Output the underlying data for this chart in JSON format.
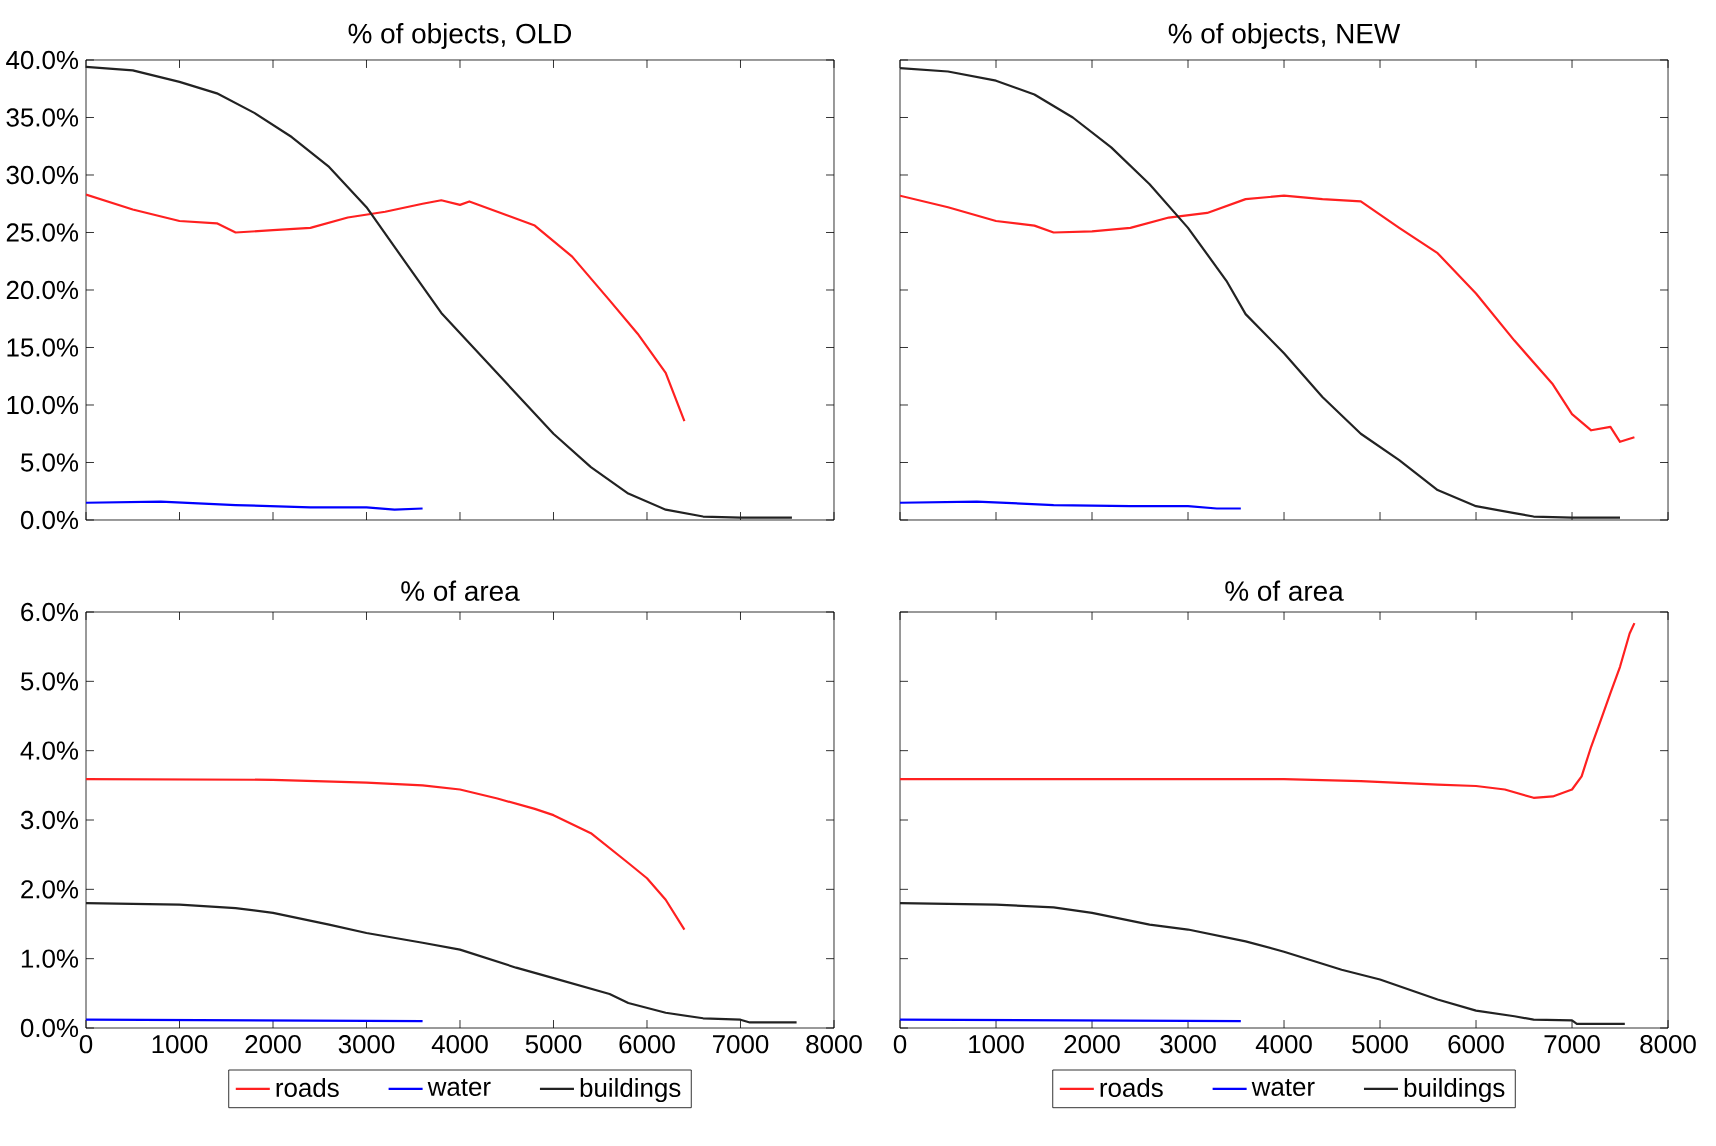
{
  "chart_data": [
    {
      "type": "line",
      "title": "% of objects, OLD",
      "xlim": [
        0,
        8000
      ],
      "xticks": [
        {
          "value": 0,
          "label": null
        },
        {
          "value": 1000,
          "label": null
        },
        {
          "value": 2000,
          "label": null
        },
        {
          "value": 3000,
          "label": null
        },
        {
          "value": 4000,
          "label": null
        },
        {
          "value": 5000,
          "label": null
        },
        {
          "value": 6000,
          "label": null
        },
        {
          "value": 7000,
          "label": null
        },
        {
          "value": 8000,
          "label": null
        }
      ],
      "ylim": [
        0,
        40
      ],
      "yticks": [
        {
          "value": 0,
          "label": "0.0%"
        },
        {
          "value": 5,
          "label": "5.0%"
        },
        {
          "value": 10,
          "label": "10.0%"
        },
        {
          "value": 15,
          "label": "15.0%"
        },
        {
          "value": 20,
          "label": "20.0%"
        },
        {
          "value": 25,
          "label": "25.0%"
        },
        {
          "value": 30,
          "label": "30.0%"
        },
        {
          "value": 35,
          "label": "35.0%"
        },
        {
          "value": 40,
          "label": "40.0%"
        }
      ],
      "tick_labels": "y",
      "legend": false,
      "series": [
        {
          "color": "#ff2020",
          "x": [
            0,
            500,
            1000,
            1400,
            1600,
            2000,
            2400,
            2800,
            3200,
            3600,
            3800,
            4000,
            4100,
            4400,
            4800,
            5200,
            5600,
            5900,
            6200,
            6400
          ],
          "values": [
            28.3,
            27.0,
            26.0,
            25.8,
            25.0,
            25.2,
            25.4,
            26.3,
            26.8,
            27.5,
            27.8,
            27.4,
            27.7,
            26.8,
            25.6,
            22.9,
            19.1,
            16.2,
            12.8,
            8.6
          ]
        },
        {
          "color": "#0000ff",
          "x": [
            0,
            800,
            1600,
            2400,
            3000,
            3300,
            3600
          ],
          "values": [
            1.5,
            1.6,
            1.3,
            1.1,
            1.1,
            0.9,
            1.0
          ]
        },
        {
          "color": "#222222",
          "x": [
            0,
            500,
            1000,
            1400,
            1800,
            2200,
            2600,
            3000,
            3400,
            3800,
            4200,
            4600,
            5000,
            5400,
            5800,
            6200,
            6600,
            7000,
            7550
          ],
          "values": [
            39.4,
            39.1,
            38.1,
            37.1,
            35.4,
            33.3,
            30.7,
            27.2,
            22.6,
            18.0,
            14.5,
            11.0,
            7.5,
            4.6,
            2.3,
            0.9,
            0.3,
            0.2,
            0.2
          ]
        }
      ]
    },
    {
      "type": "line",
      "title": "% of objects, NEW",
      "xlim": [
        0,
        8000
      ],
      "xticks": [
        {
          "value": 0,
          "label": null
        },
        {
          "value": 1000,
          "label": null
        },
        {
          "value": 2000,
          "label": null
        },
        {
          "value": 3000,
          "label": null
        },
        {
          "value": 4000,
          "label": null
        },
        {
          "value": 5000,
          "label": null
        },
        {
          "value": 6000,
          "label": null
        },
        {
          "value": 7000,
          "label": null
        },
        {
          "value": 8000,
          "label": null
        }
      ],
      "ylim": [
        0,
        40
      ],
      "yticks": [
        {
          "value": 0,
          "label": null
        },
        {
          "value": 5,
          "label": null
        },
        {
          "value": 10,
          "label": null
        },
        {
          "value": 15,
          "label": null
        },
        {
          "value": 20,
          "label": null
        },
        {
          "value": 25,
          "label": null
        },
        {
          "value": 30,
          "label": null
        },
        {
          "value": 35,
          "label": null
        },
        {
          "value": 40,
          "label": null
        }
      ],
      "tick_labels": false,
      "legend": false,
      "series": [
        {
          "color": "#ff2020",
          "x": [
            0,
            500,
            1000,
            1400,
            1600,
            2000,
            2400,
            2800,
            3200,
            3600,
            4000,
            4400,
            4800,
            5200,
            5600,
            6000,
            6400,
            6800,
            7000,
            7200,
            7400,
            7500,
            7650
          ],
          "values": [
            28.2,
            27.2,
            26.0,
            25.6,
            25.0,
            25.1,
            25.4,
            26.3,
            26.7,
            27.9,
            28.2,
            27.9,
            27.7,
            25.4,
            23.2,
            19.7,
            15.6,
            11.8,
            9.2,
            7.8,
            8.1,
            6.8,
            7.2
          ]
        },
        {
          "color": "#0000ff",
          "x": [
            0,
            800,
            1600,
            2400,
            3000,
            3300,
            3550
          ],
          "values": [
            1.5,
            1.6,
            1.3,
            1.2,
            1.2,
            1.0,
            1.0
          ]
        },
        {
          "color": "#222222",
          "x": [
            0,
            500,
            1000,
            1400,
            1800,
            2200,
            2600,
            3000,
            3400,
            3600,
            4000,
            4400,
            4800,
            5200,
            5600,
            6000,
            6400,
            6600,
            7000,
            7500
          ],
          "values": [
            39.3,
            39.0,
            38.2,
            37.0,
            35.0,
            32.4,
            29.2,
            25.4,
            20.8,
            17.9,
            14.5,
            10.7,
            7.5,
            5.2,
            2.6,
            1.2,
            0.6,
            0.3,
            0.2,
            0.2
          ]
        }
      ]
    },
    {
      "type": "line",
      "title": "% of area",
      "xlim": [
        0,
        8000
      ],
      "xticks": [
        0,
        1000,
        2000,
        3000,
        4000,
        5000,
        6000,
        7000,
        8000
      ],
      "ylim": [
        0,
        6
      ],
      "yticks": [
        {
          "value": 0,
          "label": "0.0%"
        },
        {
          "value": 1,
          "label": "1.0%"
        },
        {
          "value": 2,
          "label": "2.0%"
        },
        {
          "value": 3,
          "label": "3.0%"
        },
        {
          "value": 4,
          "label": "4.0%"
        },
        {
          "value": 5,
          "label": "5.0%"
        },
        {
          "value": 6,
          "label": "6.0%"
        }
      ],
      "legend": "bottom",
      "series": [
        {
          "name": "roads",
          "color": "#ff2020",
          "x": [
            0,
            2000,
            3000,
            3600,
            4000,
            4400,
            4800,
            5000,
            5400,
            5800,
            6000,
            6200,
            6400
          ],
          "values": [
            3.59,
            3.58,
            3.54,
            3.5,
            3.44,
            3.31,
            3.16,
            3.07,
            2.81,
            2.38,
            2.16,
            1.85,
            1.42
          ]
        },
        {
          "name": "water",
          "color": "#0000ff",
          "x": [
            0,
            3600
          ],
          "values": [
            0.12,
            0.1
          ]
        },
        {
          "name": "buildings",
          "color": "#222222",
          "x": [
            0,
            1000,
            1600,
            2000,
            2600,
            3000,
            3600,
            4000,
            4600,
            5000,
            5600,
            5800,
            6200,
            6600,
            7000,
            7100,
            7600
          ],
          "values": [
            1.8,
            1.78,
            1.73,
            1.66,
            1.49,
            1.37,
            1.23,
            1.13,
            0.87,
            0.72,
            0.49,
            0.36,
            0.22,
            0.14,
            0.12,
            0.08,
            0.08
          ]
        }
      ]
    },
    {
      "type": "line",
      "title": "% of area",
      "xlim": [
        0,
        8000
      ],
      "xticks": [
        0,
        1000,
        2000,
        3000,
        4000,
        5000,
        6000,
        7000,
        8000
      ],
      "ylim": [
        0,
        6
      ],
      "yticks": [
        {
          "value": 0,
          "label": null
        },
        {
          "value": 1,
          "label": null
        },
        {
          "value": 2,
          "label": null
        },
        {
          "value": 3,
          "label": null
        },
        {
          "value": 4,
          "label": null
        },
        {
          "value": 5,
          "label": null
        },
        {
          "value": 6,
          "label": null
        }
      ],
      "tick_labels": "x",
      "legend": "bottom",
      "series": [
        {
          "name": "roads",
          "color": "#ff2020",
          "x": [
            0,
            4000,
            4800,
            5600,
            6000,
            6300,
            6600,
            6800,
            6900,
            7000,
            7100,
            7200,
            7300,
            7400,
            7500,
            7600,
            7650
          ],
          "values": [
            3.59,
            3.59,
            3.56,
            3.51,
            3.49,
            3.44,
            3.32,
            3.34,
            3.39,
            3.44,
            3.63,
            4.06,
            4.44,
            4.83,
            5.21,
            5.69,
            5.84
          ]
        },
        {
          "name": "water",
          "color": "#0000ff",
          "x": [
            0,
            3550
          ],
          "values": [
            0.12,
            0.1
          ]
        },
        {
          "name": "buildings",
          "color": "#222222",
          "x": [
            0,
            1000,
            1600,
            2000,
            2600,
            3000,
            3600,
            4000,
            4600,
            5000,
            5600,
            6000,
            6400,
            6600,
            7000,
            7050,
            7550
          ],
          "values": [
            1.8,
            1.78,
            1.74,
            1.66,
            1.49,
            1.42,
            1.25,
            1.1,
            0.84,
            0.7,
            0.41,
            0.25,
            0.17,
            0.12,
            0.11,
            0.06,
            0.06
          ]
        }
      ]
    }
  ]
}
